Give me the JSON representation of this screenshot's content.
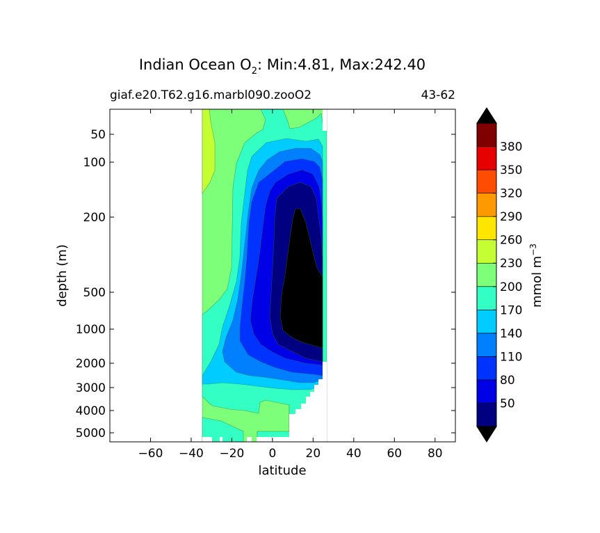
{
  "title": {
    "prefix": "Indian Ocean O",
    "subscript": "2",
    "suffix": ": Min:4.81, Max:242.40"
  },
  "subtitle_left": "giaf.e20.T62.g16.marbl090.zooO2",
  "subtitle_right": "43-62",
  "colorbar_label": "mmol m",
  "colorbar_label_exp": "−3",
  "chart_data": {
    "type": "contourf",
    "title": "Indian Ocean O2: Min:4.81, Max:242.40",
    "xlabel": "latitude",
    "ylabel": "depth (m)",
    "xlim": [
      -80,
      90
    ],
    "ylim": [
      5500,
      30
    ],
    "y_scale": "nonlinear (depth-stretched)",
    "x_ticks": [
      -60,
      -40,
      -20,
      0,
      20,
      40,
      60,
      80
    ],
    "x_tick_labels": [
      "−60",
      "−40",
      "−20",
      "0",
      "20",
      "40",
      "60",
      "80"
    ],
    "y_ticks": [
      50,
      100,
      200,
      500,
      1000,
      2000,
      3000,
      4000,
      5000
    ],
    "y_tick_labels": [
      "50",
      "100",
      "200",
      "500",
      "1000",
      "2000",
      "3000",
      "4000",
      "5000"
    ],
    "data_extent_lat": [
      -34,
      26
    ],
    "colorbar": {
      "levels": [
        20,
        50,
        80,
        110,
        140,
        170,
        200,
        230,
        260,
        290,
        320,
        350,
        380,
        410
      ],
      "tick_labels": [
        "50",
        "80",
        "110",
        "140",
        "170",
        "200",
        "230",
        "260",
        "290",
        "320",
        "350",
        "380"
      ],
      "colors": [
        "#000080",
        "#0000e6",
        "#0033ff",
        "#0080ff",
        "#00ccff",
        "#33ffc4",
        "#7dff7a",
        "#c4ff33",
        "#ffe600",
        "#ff9900",
        "#ff4d00",
        "#e60000",
        "#800000"
      ],
      "extend": "both",
      "under_color": "#000000",
      "over_color": "#000000"
    },
    "contour_fill_colors": {
      "below_20": "#000000",
      "20_50": "#000080",
      "50_80": "#0000e6",
      "80_110": "#0033ff",
      "110_140": "#0080ff",
      "140_170": "#00ccff",
      "170_200": "#33ffc4",
      "200_230": "#7dff7a",
      "230_260": "#c4ff33"
    }
  }
}
